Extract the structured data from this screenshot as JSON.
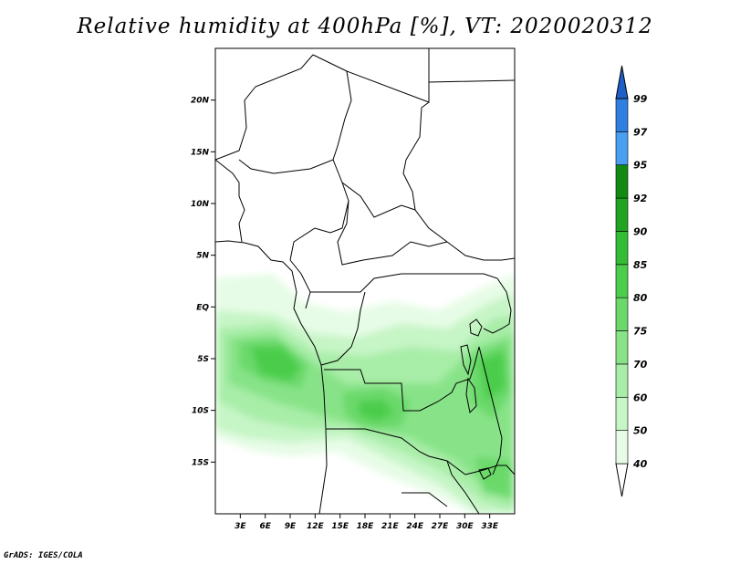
{
  "title": "Relative humidity at 400hPa [%], VT: 2020020312",
  "credit": "GrADS: IGES/COLA",
  "map": {
    "lon_range": [
      0,
      36
    ],
    "lat_range": [
      -20,
      25
    ],
    "lon_ticks": [
      "3E",
      "6E",
      "9E",
      "12E",
      "15E",
      "18E",
      "21E",
      "24E",
      "27E",
      "30E",
      "33E"
    ],
    "lat_ticks": [
      "20N",
      "15N",
      "10N",
      "5N",
      "EQ",
      "5S",
      "10S",
      "15S"
    ]
  },
  "colorbar": {
    "levels": [
      "40",
      "50",
      "60",
      "70",
      "75",
      "80",
      "85",
      "90",
      "92",
      "95",
      "97",
      "99"
    ],
    "colors": [
      "#ffffff",
      "#e6fce6",
      "#c6f5c6",
      "#a8eda8",
      "#88e388",
      "#6ad96a",
      "#4ccd4c",
      "#34bd34",
      "#22a422",
      "#128a12",
      "#4a9ff0",
      "#2f7fe0",
      "#1f5fc8"
    ]
  }
}
